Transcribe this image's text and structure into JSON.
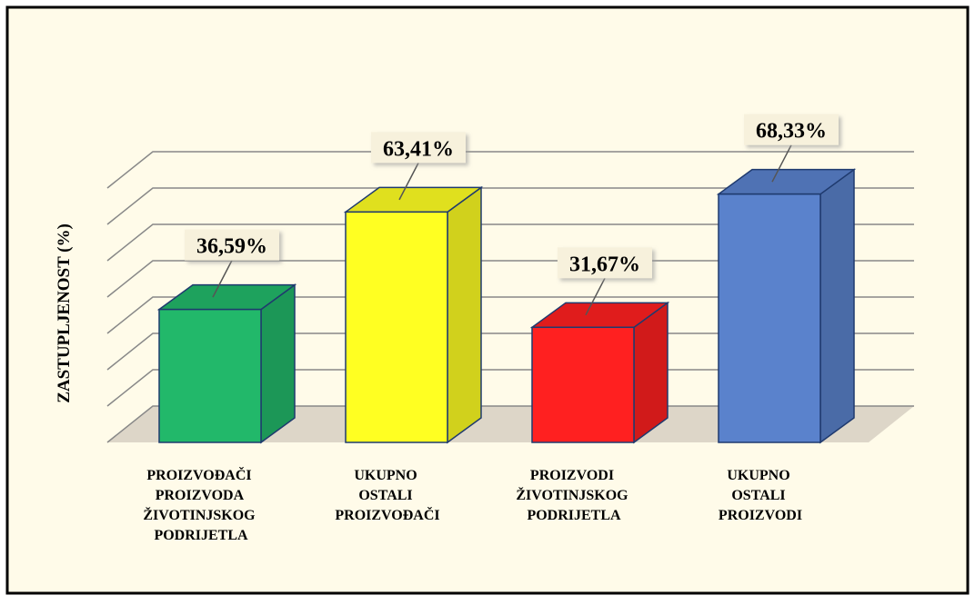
{
  "chart_data": {
    "type": "bar3d",
    "y_label": "ZASTUPLJENOST (%)",
    "categories": [
      "PROIZVOĐAČI PROIZVODA ŽIVOTINJSKOG PODRIJETLA",
      "UKUPNO OSTALI PROIZVOĐAČI",
      "PROIZVODI ŽIVOTINJSKOG PODRIJETLA",
      "UKUPNO OSTALI PROIZVODI"
    ],
    "values": [
      36.59,
      63.41,
      31.67,
      68.33
    ],
    "value_labels": [
      "36,59%",
      "63,41%",
      "31,67%",
      "68,33%"
    ],
    "colors": [
      "#22b86a",
      "#ffff22",
      "#ff2020",
      "#5a82cc"
    ],
    "ylim": [
      0,
      70
    ],
    "yticks": [
      0,
      10,
      20,
      30,
      40,
      50,
      60,
      70
    ],
    "grid": true
  }
}
